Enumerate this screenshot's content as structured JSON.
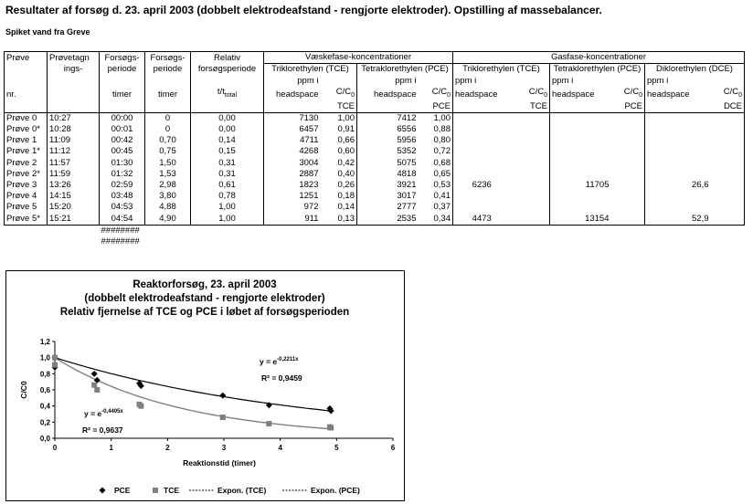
{
  "title": "Resultater af forsøg d. 23. april 2003 (dobbelt elektrodeafstand - rengjorte elektroder). Opstilling af massebalancer.",
  "subtitle": "Spiket vand fra Greve",
  "table": {
    "group_headers": {
      "liquid": "Væskefase-koncentrationer",
      "gas": "Gasfase-koncentrationer"
    },
    "headers": {
      "probe": "Prøve",
      "sample_time_1": "Prøvetagn",
      "sample_time_2": "ings-",
      "period1_1": "Forsøgs-",
      "period1_2": "periode",
      "period2_1": "Forsøgs-",
      "period2_2": "periode",
      "rel_1": "Relativ",
      "rel_2": "forsøgsperiode",
      "tce_liq": "Triklorethylen (TCE)",
      "pce_liq": "Tetraklorethylen (PCE)",
      "tce_gas": "Triklorethylen (TCE)",
      "pce_gas": "Tetraklorethylen (PCE)",
      "dce_gas": "Diklorethylen (DCE)",
      "ppm_1": "ppm i",
      "ppm_2": "headspace",
      "cc": "C/C",
      "cc_sub": "0",
      "nr": "nr.",
      "timer": "timer",
      "ttotal": "t/t",
      "ttotal_sub": "total",
      "tce_unit": "TCE",
      "pce_unit": "PCE",
      "dce_unit": "DCE"
    },
    "rows": [
      {
        "probe": "Prøve 0",
        "time": "10:27",
        "period": "00:00",
        "hours": "0",
        "rel": "0,00",
        "tce_ppm": "7130",
        "tce_cc": "1,00",
        "pce_ppm": "7412",
        "pce_cc": "1,00",
        "tce_gas": "",
        "pce_gas": "",
        "dce_gas": ""
      },
      {
        "probe": "Prøve 0*",
        "time": "10:28",
        "period": "00:01",
        "hours": "0",
        "rel": "0,00",
        "tce_ppm": "6457",
        "tce_cc": "0,91",
        "pce_ppm": "6556",
        "pce_cc": "0,88",
        "tce_gas": "",
        "pce_gas": "",
        "dce_gas": ""
      },
      {
        "probe": "Prøve 1",
        "time": "11:09",
        "period": "00:42",
        "hours": "0,70",
        "rel": "0,14",
        "tce_ppm": "4711",
        "tce_cc": "0,66",
        "pce_ppm": "5956",
        "pce_cc": "0,80",
        "tce_gas": "",
        "pce_gas": "",
        "dce_gas": ""
      },
      {
        "probe": "Prøve 1*",
        "time": "11:12",
        "period": "00:45",
        "hours": "0,75",
        "rel": "0,15",
        "tce_ppm": "4268",
        "tce_cc": "0,60",
        "pce_ppm": "5352",
        "pce_cc": "0,72",
        "tce_gas": "",
        "pce_gas": "",
        "dce_gas": ""
      },
      {
        "probe": "Prøve 2",
        "time": "11:57",
        "period": "01:30",
        "hours": "1,50",
        "rel": "0,31",
        "tce_ppm": "3004",
        "tce_cc": "0,42",
        "pce_ppm": "5075",
        "pce_cc": "0,68",
        "tce_gas": "",
        "pce_gas": "",
        "dce_gas": ""
      },
      {
        "probe": "Prøve 2*",
        "time": "11:59",
        "period": "01:32",
        "hours": "1,53",
        "rel": "0,31",
        "tce_ppm": "2887",
        "tce_cc": "0,40",
        "pce_ppm": "4818",
        "pce_cc": "0,65",
        "tce_gas": "",
        "pce_gas": "",
        "dce_gas": ""
      },
      {
        "probe": "Prøve 3",
        "time": "13:26",
        "period": "02:59",
        "hours": "2,98",
        "rel": "0,61",
        "tce_ppm": "1823",
        "tce_cc": "0,26",
        "pce_ppm": "3921",
        "pce_cc": "0,53",
        "tce_gas": "6236",
        "pce_gas": "11705",
        "dce_gas": "26,6"
      },
      {
        "probe": "Prøve 4",
        "time": "14:15",
        "period": "03:48",
        "hours": "3,80",
        "rel": "0,78",
        "tce_ppm": "1251",
        "tce_cc": "0,18",
        "pce_ppm": "3017",
        "pce_cc": "0,41",
        "tce_gas": "",
        "pce_gas": "",
        "dce_gas": ""
      },
      {
        "probe": "Prøve 5",
        "time": "15:20",
        "period": "04:53",
        "hours": "4,88",
        "rel": "1,00",
        "tce_ppm": "972",
        "tce_cc": "0,14",
        "pce_ppm": "2777",
        "pce_cc": "0,37",
        "tce_gas": "",
        "pce_gas": "",
        "dce_gas": ""
      },
      {
        "probe": "Prøve 5*",
        "time": "15:21",
        "period": "04:54",
        "hours": "4,90",
        "rel": "1,00",
        "tce_ppm": "911",
        "tce_cc": "0,13",
        "pce_ppm": "2535",
        "pce_cc": "0,34",
        "tce_gas": "4473",
        "pce_gas": "13154",
        "dce_gas": "52,9"
      }
    ],
    "overflow": [
      "########",
      "########"
    ]
  },
  "chart_data": {
    "type": "scatter",
    "title": [
      "Reaktorforsøg, 23. april 2003",
      "(dobbelt elektrodeafstand - rengjorte elektroder)",
      "Relativ fjernelse af TCE og PCE i løbet af forsøgsperioden"
    ],
    "xlabel": "Reaktionstid (timer)",
    "ylabel": "C/C0",
    "xlim": [
      0,
      6
    ],
    "ylim": [
      0,
      1.2
    ],
    "xticks": [
      "0",
      "1",
      "2",
      "3",
      "4",
      "5",
      "6"
    ],
    "yticks": [
      "0,0",
      "0,2",
      "0,4",
      "0,6",
      "0,8",
      "1,0",
      "1,2"
    ],
    "grid": false,
    "legend_position": "bottom",
    "legend": [
      "PCE",
      "TCE",
      "Expon. (TCE)",
      "Expon. (PCE)"
    ],
    "series": [
      {
        "name": "PCE",
        "marker": "diamond",
        "color": "#000000",
        "x": [
          0,
          0,
          0.7,
          0.75,
          1.5,
          1.53,
          2.98,
          3.8,
          4.88,
          4.9
        ],
        "y": [
          1.0,
          0.88,
          0.8,
          0.72,
          0.68,
          0.65,
          0.53,
          0.41,
          0.37,
          0.34
        ]
      },
      {
        "name": "TCE",
        "marker": "square",
        "color": "#7f7f7f",
        "x": [
          0,
          0,
          0.7,
          0.75,
          1.5,
          1.53,
          2.98,
          3.8,
          4.88,
          4.9
        ],
        "y": [
          1.0,
          0.91,
          0.66,
          0.6,
          0.42,
          0.4,
          0.26,
          0.18,
          0.14,
          0.13
        ]
      },
      {
        "name": "Expon. (TCE)",
        "type": "trendline",
        "k": -0.4405,
        "color": "#7f7f7f",
        "xrange": [
          0,
          4.9
        ]
      },
      {
        "name": "Expon. (PCE)",
        "type": "trendline",
        "k": -0.2211,
        "color": "#000000",
        "xrange": [
          0,
          4.9
        ]
      }
    ],
    "annotations": [
      {
        "text_base": "y = e",
        "text_exp": "-0,2211x",
        "r2": "R² = 0,9459",
        "series": "PCE"
      },
      {
        "text_base": "y = e",
        "text_exp": "-0,4405x",
        "r2": "R² = 0,9637",
        "series": "TCE"
      }
    ]
  }
}
